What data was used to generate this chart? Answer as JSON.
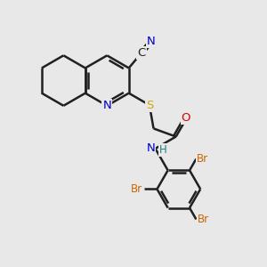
{
  "bg_color": "#e8e8e8",
  "bond_color": "#202020",
  "bond_width": 1.8,
  "atom_colors": {
    "N": "#0000cc",
    "S": "#ccaa00",
    "O": "#dd0000",
    "Br": "#cc6600",
    "C": "#202020",
    "H": "#208080"
  },
  "font_size_atom": 9.5,
  "font_size_small": 8.5
}
